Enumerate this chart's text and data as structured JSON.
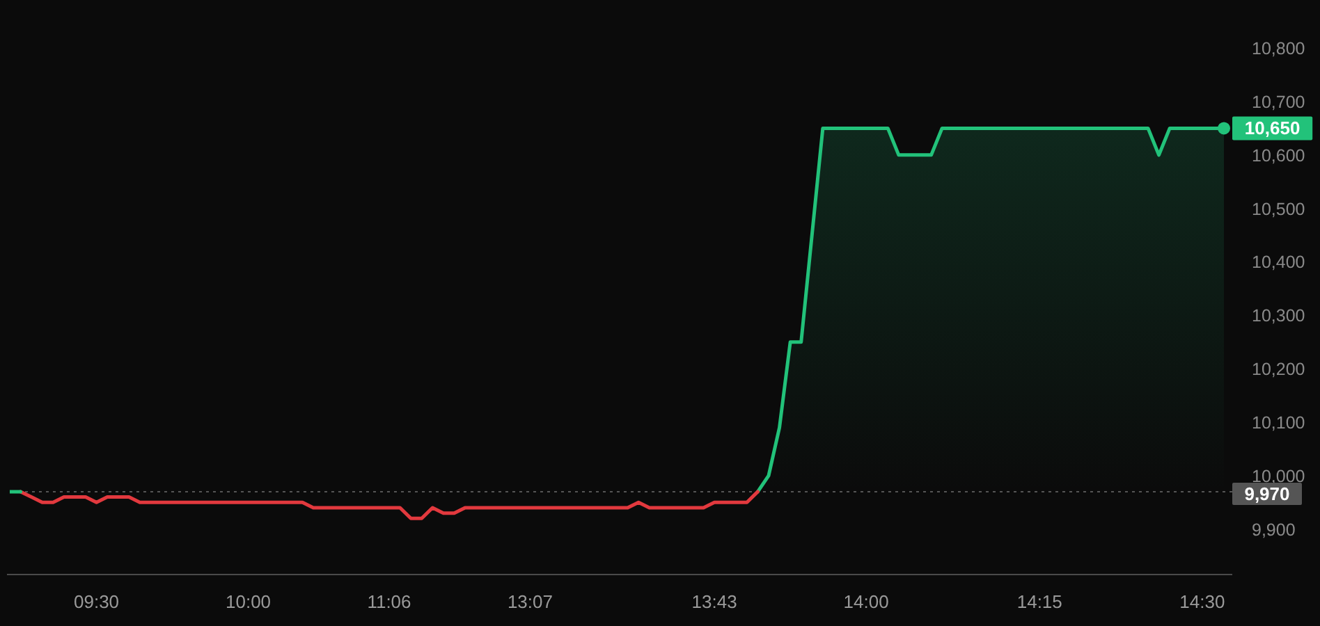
{
  "chart_data": {
    "type": "line",
    "categories": [
      null,
      null,
      null,
      null,
      null,
      null,
      null,
      null,
      "09:30",
      null,
      null,
      null,
      null,
      null,
      null,
      null,
      null,
      null,
      null,
      null,
      null,
      null,
      "10:00",
      null,
      null,
      null,
      null,
      null,
      null,
      null,
      null,
      null,
      null,
      null,
      null,
      "11:06",
      null,
      null,
      null,
      null,
      null,
      null,
      null,
      null,
      null,
      null,
      null,
      null,
      "13:07",
      null,
      null,
      null,
      null,
      null,
      null,
      null,
      null,
      null,
      null,
      null,
      null,
      null,
      null,
      null,
      null,
      "13:43",
      null,
      null,
      null,
      null,
      null,
      null,
      null,
      null,
      null,
      null,
      null,
      null,
      null,
      "14:00",
      null,
      null,
      null,
      null,
      null,
      null,
      null,
      null,
      null,
      null,
      null,
      null,
      null,
      null,
      null,
      "14:15",
      null,
      null,
      null,
      null,
      null,
      null,
      null,
      null,
      null,
      null,
      null,
      null,
      null,
      null,
      "14:30",
      null,
      null
    ],
    "series": [
      {
        "color": "#e2393e",
        "values": [
          null,
          9970,
          9960,
          9950,
          9950,
          9960,
          9960,
          9960,
          9950,
          9960,
          9960,
          9960,
          9950,
          9950,
          9950,
          9950,
          9950,
          9950,
          9950,
          9950,
          9950,
          9950,
          9950,
          9950,
          9950,
          9950,
          9950,
          9950,
          9940,
          9940,
          9940,
          9940,
          9940,
          9940,
          9940,
          9940,
          9940,
          9920,
          9920,
          9940,
          9930,
          9930,
          9940,
          9940,
          9940,
          9940,
          9940,
          9940,
          9940,
          9940,
          9940,
          9940,
          9940,
          9940,
          9940,
          9940,
          9940,
          9940,
          9950,
          9940,
          9940,
          9940,
          9940,
          9940,
          9940,
          9950,
          9950,
          9950,
          9950,
          9970,
          null,
          null,
          null,
          null,
          null,
          null,
          null,
          null,
          null,
          null,
          null,
          null,
          null,
          null,
          null,
          null,
          null,
          null,
          null,
          null,
          null,
          null,
          null,
          null,
          null,
          null,
          null,
          null,
          null,
          null,
          null,
          null,
          null,
          null,
          null,
          null,
          null,
          null,
          null,
          null,
          null,
          null,
          null
        ]
      },
      {
        "color": "#22c27a",
        "values": [
          9970,
          9970,
          null,
          null,
          null,
          null,
          null,
          null,
          null,
          null,
          null,
          null,
          null,
          null,
          null,
          null,
          null,
          null,
          null,
          null,
          null,
          null,
          null,
          null,
          null,
          null,
          null,
          null,
          null,
          null,
          null,
          null,
          null,
          null,
          null,
          null,
          null,
          null,
          null,
          null,
          null,
          null,
          null,
          null,
          null,
          null,
          null,
          null,
          null,
          null,
          null,
          null,
          null,
          null,
          null,
          null,
          null,
          null,
          null,
          null,
          null,
          null,
          null,
          null,
          null,
          null,
          null,
          null,
          null,
          null,
          null,
          null,
          null,
          null,
          null,
          null,
          null,
          null,
          null,
          null,
          null,
          null,
          null,
          null,
          null,
          null,
          null,
          null,
          null,
          null,
          null,
          null,
          null,
          null,
          null,
          null,
          null,
          null,
          null,
          null,
          null,
          null,
          null,
          null,
          null,
          null,
          null,
          null,
          null,
          null,
          null,
          null,
          null
        ]
      },
      {
        "type": "area",
        "color": "#22c27a",
        "values": [
          null,
          null,
          null,
          null,
          null,
          null,
          null,
          null,
          null,
          null,
          null,
          null,
          null,
          null,
          null,
          null,
          null,
          null,
          null,
          null,
          null,
          null,
          null,
          null,
          null,
          null,
          null,
          null,
          null,
          null,
          null,
          null,
          null,
          null,
          null,
          null,
          null,
          null,
          null,
          null,
          null,
          null,
          null,
          null,
          null,
          null,
          null,
          null,
          null,
          null,
          null,
          null,
          null,
          null,
          null,
          null,
          null,
          null,
          null,
          null,
          null,
          null,
          null,
          null,
          null,
          null,
          null,
          null,
          null,
          9970,
          10000,
          10090,
          10250,
          10250,
          10450,
          10650,
          10650,
          10650,
          10650,
          10650,
          10650,
          10650,
          10600,
          10600,
          10600,
          10600,
          10650,
          10650,
          10650,
          10650,
          10650,
          10650,
          10650,
          10650,
          10650,
          10650,
          10650,
          10650,
          10650,
          10650,
          10650,
          10650,
          10650,
          10650,
          10650,
          10650,
          10600,
          10650,
          10650,
          10650,
          10650,
          10650,
          10650
        ],
        "value_labels": [
          null,
          null,
          null,
          null,
          null,
          null,
          null,
          null,
          null,
          null,
          null,
          null,
          null,
          null,
          null,
          null,
          null,
          null,
          null,
          null,
          null,
          null,
          null,
          null,
          null,
          null,
          null,
          null,
          null,
          null,
          null,
          null,
          null,
          null,
          null,
          null,
          null,
          null,
          null,
          null,
          null,
          null,
          null,
          null,
          null,
          null,
          null,
          null,
          null,
          null,
          null,
          null,
          null,
          null,
          null,
          null,
          null,
          null,
          null,
          null,
          null,
          null,
          null,
          null,
          null,
          null,
          null,
          null,
          null,
          null,
          null,
          null,
          null,
          null,
          null,
          null,
          null,
          null,
          null,
          null,
          null,
          null,
          null,
          null,
          null,
          null,
          null,
          null,
          null,
          null,
          null,
          null,
          null,
          null,
          null,
          null,
          null,
          null,
          null,
          null,
          null,
          null,
          null,
          null,
          null,
          null,
          null,
          null,
          null,
          null,
          null,
          null,
          "10,650"
        ]
      }
    ],
    "ylim": [
      9815,
      10890
    ],
    "yticks": [
      {
        "value": 9900,
        "label": "9,900"
      },
      {
        "value": 10000,
        "label": "10,000"
      },
      {
        "value": 10100,
        "label": "10,100"
      },
      {
        "value": 10200,
        "label": "10,200"
      },
      {
        "value": 10300,
        "label": "10,300"
      },
      {
        "value": 10400,
        "label": "10,400"
      },
      {
        "value": 10500,
        "label": "10,500"
      },
      {
        "value": 10600,
        "label": "10,600"
      },
      {
        "value": 10700,
        "label": "10,700"
      },
      {
        "value": 10800,
        "label": "10,800"
      }
    ],
    "ref_lines": [
      {
        "axis": "y",
        "value": 9970,
        "label": "9,970",
        "color": "#555555",
        "line_style": "dotted"
      }
    ]
  }
}
